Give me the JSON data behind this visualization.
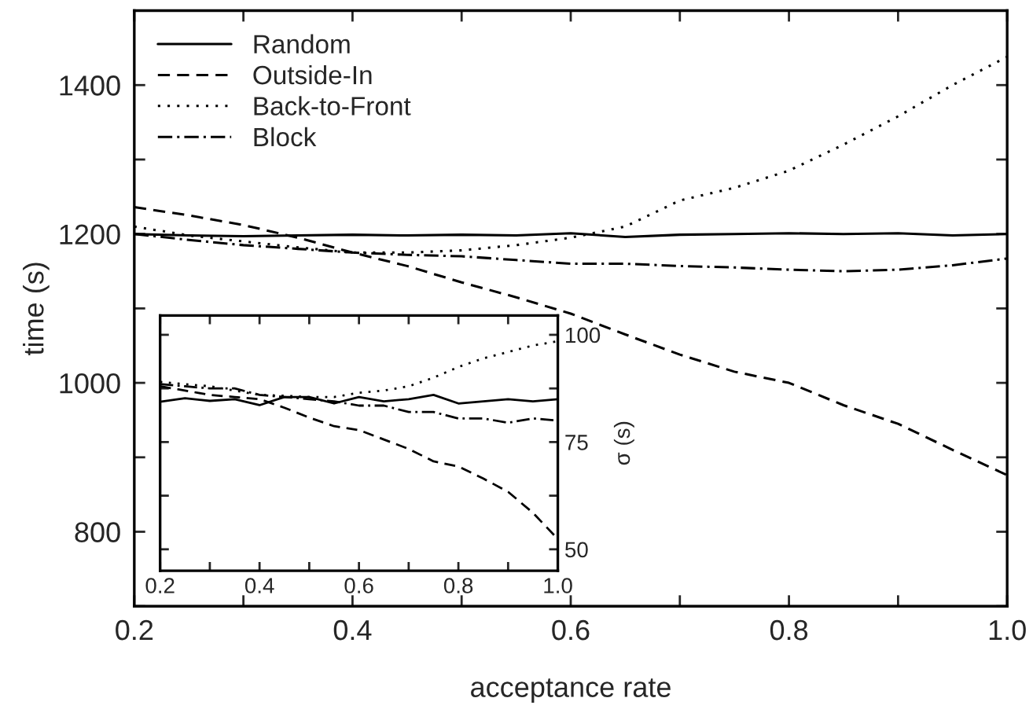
{
  "chart_data": [
    {
      "type": "line",
      "xlabel": "acceptance rate",
      "ylabel": "time (s)",
      "x": [
        0.2,
        0.25,
        0.3,
        0.35,
        0.4,
        0.45,
        0.5,
        0.55,
        0.6,
        0.65,
        0.7,
        0.75,
        0.8,
        0.85,
        0.9,
        0.95,
        1.0
      ],
      "series": [
        {
          "name": "Random",
          "color": "#000000",
          "line_style": "solid",
          "values": [
            1200,
            1198,
            1197,
            1198,
            1199,
            1198,
            1199,
            1198,
            1201,
            1196,
            1199,
            1200,
            1201,
            1200,
            1201,
            1198,
            1200
          ]
        },
        {
          "name": "Outside-In",
          "color": "#000000",
          "line_style": "dashed",
          "values": [
            1236,
            1225,
            1212,
            1195,
            1175,
            1157,
            1135,
            1115,
            1093,
            1065,
            1038,
            1015,
            1000,
            970,
            945,
            910,
            876
          ]
        },
        {
          "name": "Back-to-Front",
          "color": "#000000",
          "line_style": "dotted",
          "values": [
            1210,
            1198,
            1190,
            1182,
            1175,
            1175,
            1178,
            1185,
            1195,
            1210,
            1245,
            1262,
            1285,
            1320,
            1358,
            1400,
            1438
          ]
        },
        {
          "name": "Block",
          "color": "#000000",
          "line_style": "dashdot",
          "values": [
            1200,
            1192,
            1185,
            1180,
            1175,
            1172,
            1170,
            1165,
            1160,
            1160,
            1157,
            1155,
            1152,
            1150,
            1152,
            1158,
            1167
          ]
        }
      ],
      "xlim": [
        0.2,
        1.0
      ],
      "ylim": [
        700,
        1500
      ],
      "xticks": [
        0.2,
        {
          "value": 0.3,
          "label": null
        },
        0.4,
        {
          "value": 0.5,
          "label": null
        },
        0.6,
        {
          "value": 0.7,
          "label": null
        },
        0.8,
        {
          "value": 0.9,
          "label": null
        },
        {
          "value": 1.0,
          "label": "1.0"
        }
      ],
      "yticks": [
        {
          "value": 700,
          "label": null
        },
        800,
        {
          "value": 900,
          "label": null
        },
        1000,
        {
          "value": 1100,
          "label": null
        },
        1200,
        {
          "value": 1300,
          "label": null
        },
        1400,
        {
          "value": 1500,
          "label": null
        }
      ],
      "legend": "top left",
      "grid": false
    },
    {
      "type": "line",
      "y2label": "σ (s)",
      "x": [
        0.2,
        0.25,
        0.3,
        0.35,
        0.4,
        0.45,
        0.5,
        0.55,
        0.6,
        0.65,
        0.7,
        0.75,
        0.8,
        0.85,
        0.9,
        0.95,
        1.0
      ],
      "series": [
        {
          "color": "#000000",
          "line_style": "solid",
          "axis": "y2",
          "values": [
            84.4,
            85.2,
            84.6,
            85,
            83.6,
            85.5,
            85.5,
            84,
            85.5,
            84.5,
            85,
            86,
            84,
            84.5,
            85,
            84.5,
            85
          ]
        },
        {
          "color": "#000000",
          "line_style": "dashed",
          "axis": "y2",
          "values": [
            88,
            87,
            86,
            85.5,
            85,
            83,
            80.7,
            78.7,
            77.8,
            75.6,
            73.4,
            70.5,
            69.3,
            66.5,
            63.4,
            58.5,
            52.4
          ]
        },
        {
          "color": "#000000",
          "line_style": "dotted",
          "axis": "y2",
          "values": [
            89,
            88.5,
            88,
            87,
            86,
            85.8,
            85.5,
            85.5,
            86.5,
            87,
            88,
            90,
            92.5,
            94.5,
            96,
            97.5,
            98.5
          ]
        },
        {
          "color": "#000000",
          "line_style": "dashdot",
          "axis": "y2",
          "values": [
            88.5,
            88,
            87.5,
            87.5,
            86,
            85.5,
            85,
            84.5,
            83.5,
            83.5,
            82,
            82,
            80.5,
            80.5,
            79.5,
            80.5,
            80
          ]
        }
      ],
      "xlim": [
        0.2,
        1.0
      ],
      "y2lim": [
        45,
        104.5
      ],
      "xticks": [
        0.2,
        {
          "value": 0.3,
          "label": null
        },
        0.4,
        {
          "value": 0.5,
          "label": null
        },
        0.6,
        {
          "value": 0.7,
          "label": null
        },
        0.8,
        {
          "value": 0.9,
          "label": null
        },
        {
          "value": 1.0,
          "label": "1.0"
        }
      ],
      "y2ticks": [
        50,
        {
          "value": 62.5,
          "label": null
        },
        75,
        {
          "value": 87.5,
          "label": null
        },
        100
      ],
      "legend": false,
      "grid": false
    }
  ]
}
